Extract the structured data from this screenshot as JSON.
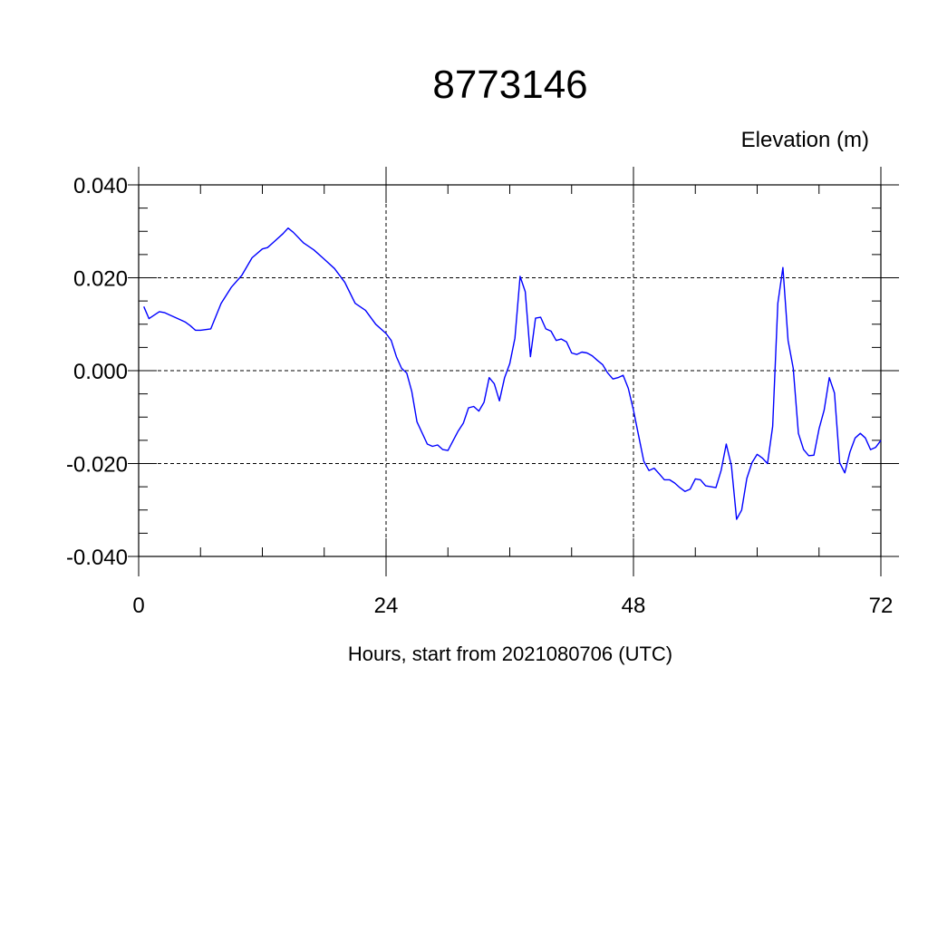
{
  "chart_data": {
    "type": "line",
    "title": "8773146",
    "ylabel": "Elevation (m)",
    "xlabel": "Hours, start from 2021080706 (UTC)",
    "xlim": [
      0,
      72
    ],
    "ylim": [
      -0.04,
      0.04
    ],
    "x_ticks": [
      0,
      24,
      48,
      72
    ],
    "x_tick_labels": [
      "0",
      "24",
      "48",
      "72"
    ],
    "y_ticks": [
      0.04,
      0.02,
      0.0,
      -0.02,
      -0.04
    ],
    "y_tick_labels": [
      "0.040",
      "0.020",
      "0.000",
      "-0.020",
      "-0.040"
    ],
    "grid": true,
    "line_color": "#0000ff",
    "series": [
      {
        "x": [
          0.5,
          1,
          2,
          2.5,
          3,
          4,
          4.5,
          5,
          5.5,
          6,
          7,
          8,
          9,
          10,
          11,
          12,
          12.5,
          13,
          14,
          14.5,
          15,
          16,
          17,
          18,
          19,
          20,
          21,
          22,
          23,
          24,
          24.5,
          25,
          25.5,
          26,
          26.5,
          27,
          28,
          28.5,
          29,
          29.5,
          30,
          31,
          31.5,
          32,
          32.5,
          33,
          33.5,
          34,
          34.5,
          35,
          35.5,
          36,
          36.5,
          37,
          37.5,
          38,
          38.5,
          39,
          39.5,
          40,
          40.5,
          41,
          41.5,
          42,
          42.5,
          43,
          43.5,
          44,
          44.5,
          45,
          45.5,
          46,
          46.5,
          47,
          47.5,
          48,
          48.5,
          49,
          49.5,
          50,
          50.5,
          51,
          51.5,
          52,
          52.5,
          53,
          53.5,
          54,
          54.5,
          55,
          55.5,
          56,
          56.5,
          57,
          57.5,
          58,
          58.5,
          59,
          59.5,
          60,
          60.5,
          61,
          61.5,
          62,
          62.5,
          63,
          63.5,
          64,
          64.5,
          65,
          65.5,
          66,
          66.5,
          67,
          67.5,
          68,
          68.5,
          69,
          69.5,
          70,
          70.5,
          71,
          71.5,
          72
        ],
        "values": [
          0.0138,
          0.0112,
          0.0127,
          0.0125,
          0.012,
          0.011,
          0.0105,
          0.0097,
          0.0087,
          0.0087,
          0.009,
          0.0145,
          0.018,
          0.0205,
          0.0243,
          0.0262,
          0.0265,
          0.0275,
          0.0295,
          0.0307,
          0.0298,
          0.0275,
          0.026,
          0.024,
          0.022,
          0.019,
          0.0145,
          0.013,
          0.01,
          0.008,
          0.0065,
          0.003,
          0.0005,
          -0.0005,
          -0.0045,
          -0.011,
          -0.0158,
          -0.0163,
          -0.016,
          -0.017,
          -0.0172,
          -0.013,
          -0.0113,
          -0.008,
          -0.0077,
          -0.0087,
          -0.0068,
          -0.0015,
          -0.0028,
          -0.0065,
          -0.0015,
          0.0015,
          0.007,
          0.0203,
          0.017,
          0.003,
          0.0113,
          0.0115,
          0.009,
          0.0085,
          0.0065,
          0.0068,
          0.0062,
          0.0038,
          0.0035,
          0.004,
          0.0038,
          0.0032,
          0.0022,
          0.0013,
          -0.0005,
          -0.0018,
          -0.0015,
          -0.001,
          -0.0038,
          -0.0085,
          -0.014,
          -0.0195,
          -0.0215,
          -0.021,
          -0.0222,
          -0.0235,
          -0.0235,
          -0.0242,
          -0.0252,
          -0.026,
          -0.0255,
          -0.0233,
          -0.0235,
          -0.0248,
          -0.025,
          -0.0252,
          -0.0215,
          -0.0158,
          -0.0205,
          -0.032,
          -0.03,
          -0.0232,
          -0.0198,
          -0.018,
          -0.0188,
          -0.02,
          -0.012,
          0.0145,
          0.0222,
          0.0065,
          0.0005,
          -0.0135,
          -0.017,
          -0.0183,
          -0.0182,
          -0.0125,
          -0.0085,
          -0.0015,
          -0.0048,
          -0.0198,
          -0.022,
          -0.0175,
          -0.0145,
          -0.0135,
          -0.0145,
          -0.017,
          -0.0165,
          -0.015
        ]
      }
    ]
  }
}
